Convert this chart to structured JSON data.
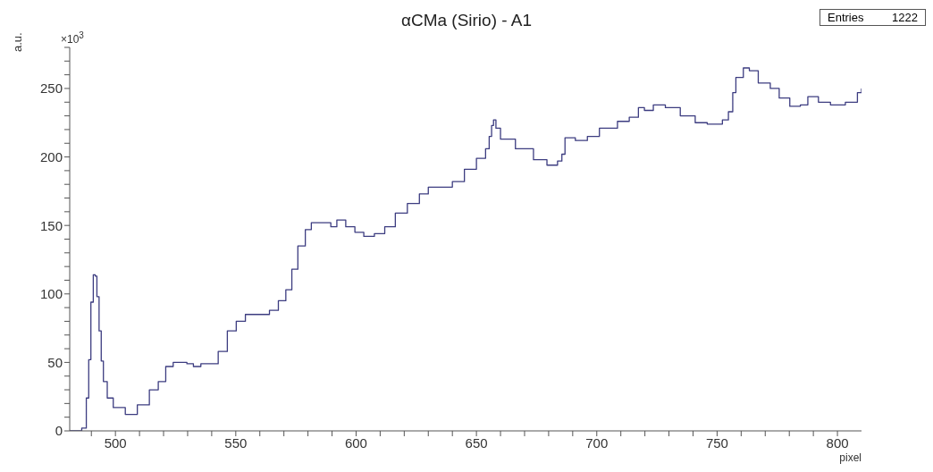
{
  "chart_data": {
    "type": "step",
    "title": "αCMa (Sirio) - A1",
    "xlabel": "pixel",
    "ylabel": "a.u.",
    "annotations": [
      "×10$^{3}$",
      "Entries 1222"
    ],
    "x": [
      481,
      482.8,
      486,
      487.9,
      488.9,
      489.8,
      490.8,
      491.6,
      492.3,
      493.2,
      494.1,
      495,
      496.6,
      499.1,
      504.1,
      509.1,
      514.1,
      517.8,
      520.9,
      524,
      526.5,
      529.7,
      532.4,
      535.5,
      540,
      542.7,
      546.5,
      550.2,
      554,
      559,
      564,
      567.7,
      570.8,
      573.3,
      575.8,
      578.9,
      581.4,
      585.2,
      589.5,
      592,
      595.7,
      599.5,
      603.2,
      607.6,
      611.9,
      616.3,
      621.3,
      626.3,
      630,
      633.8,
      640,
      645,
      650,
      653.8,
      655.3,
      656.3,
      657.1,
      658.1,
      660,
      666.2,
      673.7,
      679.3,
      683.7,
      685.5,
      686.8,
      691.1,
      696.1,
      701.1,
      708.6,
      713.5,
      717.3,
      719.8,
      723.5,
      728.5,
      734.7,
      740.9,
      745.9,
      752.2,
      754.7,
      756.5,
      757.8,
      760.9,
      763.4,
      767.1,
      772.1,
      775.8,
      780.2,
      784.6,
      787.7,
      792.1,
      797.1,
      803.3,
      808.3,
      810
    ],
    "series": [
      {
        "color": "#3c3c80",
        "values": [
          0,
          0,
          2,
          24,
          52,
          94,
          114,
          113,
          98,
          73,
          51,
          36,
          24,
          17,
          12,
          19,
          30,
          36,
          47,
          50,
          50,
          49,
          47,
          49,
          49,
          58,
          73,
          80,
          85,
          85,
          88,
          95,
          103,
          118,
          135,
          147,
          152,
          152,
          149,
          154,
          149,
          145,
          142,
          144,
          149,
          159,
          166,
          173,
          178,
          178,
          182,
          191,
          199,
          206,
          215,
          223,
          227,
          221,
          213,
          206,
          198,
          194,
          197,
          202,
          214,
          212,
          215,
          221,
          226,
          229,
          236,
          234,
          238,
          236,
          230,
          225,
          224,
          227,
          233,
          247,
          258,
          265,
          263,
          254,
          250,
          243,
          237,
          238,
          244,
          240,
          238,
          240,
          247,
          250
        ]
      }
    ],
    "xlim": [
      481,
      810
    ],
    "ylim": [
      0,
      280
    ],
    "xticks": [
      500,
      550,
      600,
      650,
      700,
      750,
      800,
      {
        "value": 490,
        "label": null
      },
      {
        "value": 510,
        "label": null
      },
      {
        "value": 520,
        "label": null
      },
      {
        "value": 530,
        "label": null
      },
      {
        "value": 540,
        "label": null
      },
      {
        "value": 560,
        "label": null
      },
      {
        "value": 570,
        "label": null
      },
      {
        "value": 580,
        "label": null
      },
      {
        "value": 590,
        "label": null
      },
      {
        "value": 610,
        "label": null
      },
      {
        "value": 620,
        "label": null
      },
      {
        "value": 630,
        "label": null
      },
      {
        "value": 640,
        "label": null
      },
      {
        "value": 660,
        "label": null
      },
      {
        "value": 670,
        "label": null
      },
      {
        "value": 680,
        "label": null
      },
      {
        "value": 690,
        "label": null
      },
      {
        "value": 710,
        "label": null
      },
      {
        "value": 720,
        "label": null
      },
      {
        "value": 730,
        "label": null
      },
      {
        "value": 740,
        "label": null
      },
      {
        "value": 760,
        "label": null
      },
      {
        "value": 770,
        "label": null
      },
      {
        "value": 780,
        "label": null
      },
      {
        "value": 790,
        "label": null
      }
    ],
    "yticks": [
      0,
      50,
      100,
      150,
      200,
      250,
      {
        "value": 10,
        "label": null
      },
      {
        "value": 20,
        "label": null
      },
      {
        "value": 30,
        "label": null
      },
      {
        "value": 40,
        "label": null
      },
      {
        "value": 60,
        "label": null
      },
      {
        "value": 70,
        "label": null
      },
      {
        "value": 80,
        "label": null
      },
      {
        "value": 90,
        "label": null
      },
      {
        "value": 110,
        "label": null
      },
      {
        "value": 120,
        "label": null
      },
      {
        "value": 130,
        "label": null
      },
      {
        "value": 140,
        "label": null
      },
      {
        "value": 160,
        "label": null
      },
      {
        "value": 170,
        "label": null
      },
      {
        "value": 180,
        "label": null
      },
      {
        "value": 190,
        "label": null
      },
      {
        "value": 210,
        "label": null
      },
      {
        "value": 220,
        "label": null
      },
      {
        "value": 230,
        "label": null
      },
      {
        "value": 240,
        "label": null
      },
      {
        "value": 260,
        "label": null
      },
      {
        "value": 270,
        "label": null
      },
      {
        "value": 280,
        "label": null
      }
    ],
    "grid": false,
    "legend": false
  }
}
